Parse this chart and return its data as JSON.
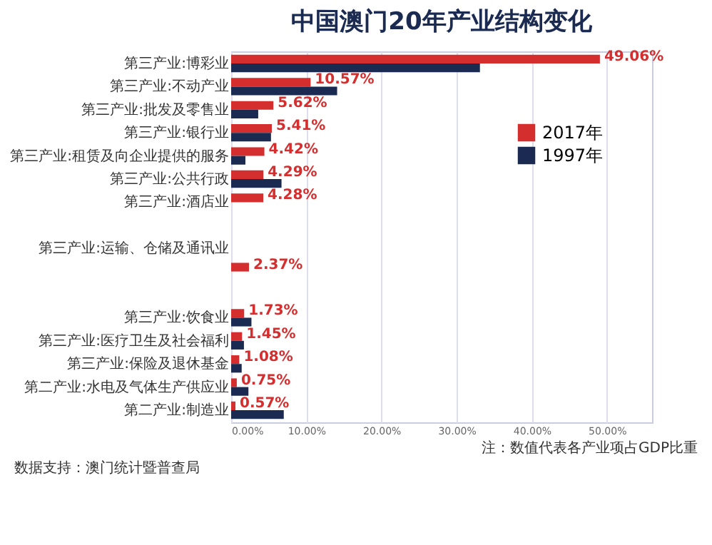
{
  "chart_data": {
    "type": "bar",
    "orientation": "horizontal",
    "title": "中国澳门20年产业结构变化",
    "categories": [
      "第三产业:博彩业",
      "第三产业:不动产业",
      "第三产业:批发及零售业",
      "第三产业:银行业",
      "第三产业:租赁及向企业提供的服务",
      "第三产业:公共行政",
      "第三产业:酒店业",
      null,
      "第三产业:运输、仓储及通讯业",
      null,
      null,
      "第三产业:饮食业",
      "第三产业:医疗卫生及社会福利",
      "第三产业:保险及退休基金",
      "第二产业:水电及气体生产供应业",
      "第二产业:制造业"
    ],
    "series": [
      {
        "name": "2017年",
        "color": "#d42e2e",
        "values": [
          49.06,
          10.57,
          5.62,
          5.41,
          4.42,
          4.29,
          4.28,
          null,
          null,
          2.37,
          null,
          1.73,
          1.45,
          1.08,
          0.75,
          0.57
        ],
        "value_labels": [
          "49.06%",
          "10.57%",
          "5.62%",
          "5.41%",
          "4.42%",
          "4.29%",
          "4.28%",
          null,
          null,
          "2.37%",
          null,
          "1.73%",
          "1.45%",
          "1.08%",
          "0.75%",
          "0.57%"
        ]
      },
      {
        "name": "1997年",
        "color": "#1a2a50",
        "values": [
          33.1,
          14.1,
          3.6,
          5.3,
          1.9,
          6.7,
          null,
          null,
          null,
          null,
          null,
          2.7,
          1.7,
          1.4,
          2.3,
          7.0
        ]
      }
    ],
    "xlim": [
      0,
      56
    ],
    "xticks": [
      {
        "value": 0,
        "label": "0.00%"
      },
      {
        "value": 10,
        "label": "10.00%"
      },
      {
        "value": 20,
        "label": "20.00%"
      },
      {
        "value": 30,
        "label": "30.00%"
      },
      {
        "value": 40,
        "label": "40.00%"
      },
      {
        "value": 50,
        "label": "50.00%"
      }
    ],
    "grid": "x",
    "legend": "right",
    "annotations": [
      "注：数值代表各产业项占GDP比重",
      "数据支持：澳门统计暨普查局"
    ]
  }
}
